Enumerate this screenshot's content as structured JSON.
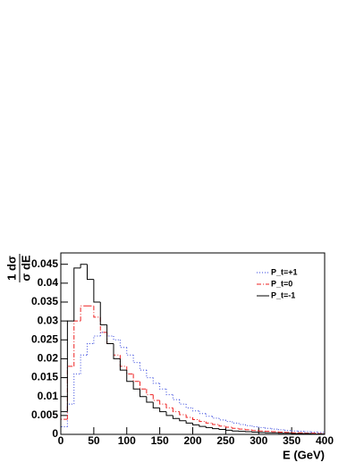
{
  "chart_data": {
    "type": "histogram",
    "xlabel": "E (GeV)",
    "ylabel": {
      "numerator": "1 dσ",
      "denominator": "σ dE"
    },
    "bins": [
      0,
      10,
      20,
      30,
      40,
      50,
      60,
      70,
      80,
      90,
      100,
      110,
      120,
      130,
      140,
      150,
      160,
      170,
      180,
      190,
      200,
      210,
      220,
      230,
      240,
      250,
      260,
      270,
      280,
      290,
      300,
      310,
      320,
      330,
      340,
      350,
      360,
      370,
      380,
      390,
      400
    ],
    "series": [
      {
        "name": "P_t=+1",
        "color": "#3344dd",
        "dash": "dotted",
        "values": [
          0.002,
          0.008,
          0.016,
          0.021,
          0.024,
          0.026,
          0.027,
          0.026,
          0.025,
          0.023,
          0.021,
          0.019,
          0.017,
          0.015,
          0.0135,
          0.012,
          0.0105,
          0.0092,
          0.008,
          0.007,
          0.0062,
          0.0055,
          0.0048,
          0.0043,
          0.0038,
          0.0034,
          0.003,
          0.0026,
          0.0023,
          0.002,
          0.0018,
          0.0016,
          0.0014,
          0.0012,
          0.001,
          0.0009,
          0.0008,
          0.0007,
          0.0006,
          0.0005
        ]
      },
      {
        "name": "P_t=0",
        "color": "#ee2222",
        "dash": "dashdot",
        "values": [
          0.004,
          0.018,
          0.03,
          0.034,
          0.034,
          0.031,
          0.027,
          0.024,
          0.021,
          0.018,
          0.016,
          0.014,
          0.012,
          0.0105,
          0.009,
          0.008,
          0.007,
          0.006,
          0.0052,
          0.0045,
          0.0039,
          0.0034,
          0.003,
          0.0026,
          0.0022,
          0.0019,
          0.0016,
          0.0014,
          0.0012,
          0.001,
          0.0009,
          0.0008,
          0.0007,
          0.0006,
          0.0005,
          0.0004,
          0.0004,
          0.0003,
          0.0003,
          0.0002
        ]
      },
      {
        "name": "P_t=-1",
        "color": "#000000",
        "dash": "solid",
        "values": [
          0.006,
          0.03,
          0.044,
          0.045,
          0.041,
          0.035,
          0.029,
          0.024,
          0.02,
          0.017,
          0.014,
          0.012,
          0.01,
          0.0085,
          0.007,
          0.006,
          0.005,
          0.0042,
          0.0036,
          0.003,
          0.0025,
          0.0021,
          0.0018,
          0.0015,
          0.0013,
          0.0011,
          0.0009,
          0.0008,
          0.0007,
          0.0006,
          0.0005,
          0.0004,
          0.0004,
          0.0003,
          0.0003,
          0.0002,
          0.0002,
          0.0002,
          0.0001,
          0.0001
        ]
      }
    ],
    "xlim": [
      0,
      400
    ],
    "xticks": [
      0,
      50,
      100,
      150,
      200,
      250,
      300,
      350,
      400
    ],
    "ylim": [
      0,
      0.048
    ],
    "yticks": [
      0,
      0.005,
      0.01,
      0.015,
      0.02,
      0.025,
      0.03,
      0.035,
      0.04,
      0.045
    ],
    "grid": false,
    "legend": "top-right"
  }
}
